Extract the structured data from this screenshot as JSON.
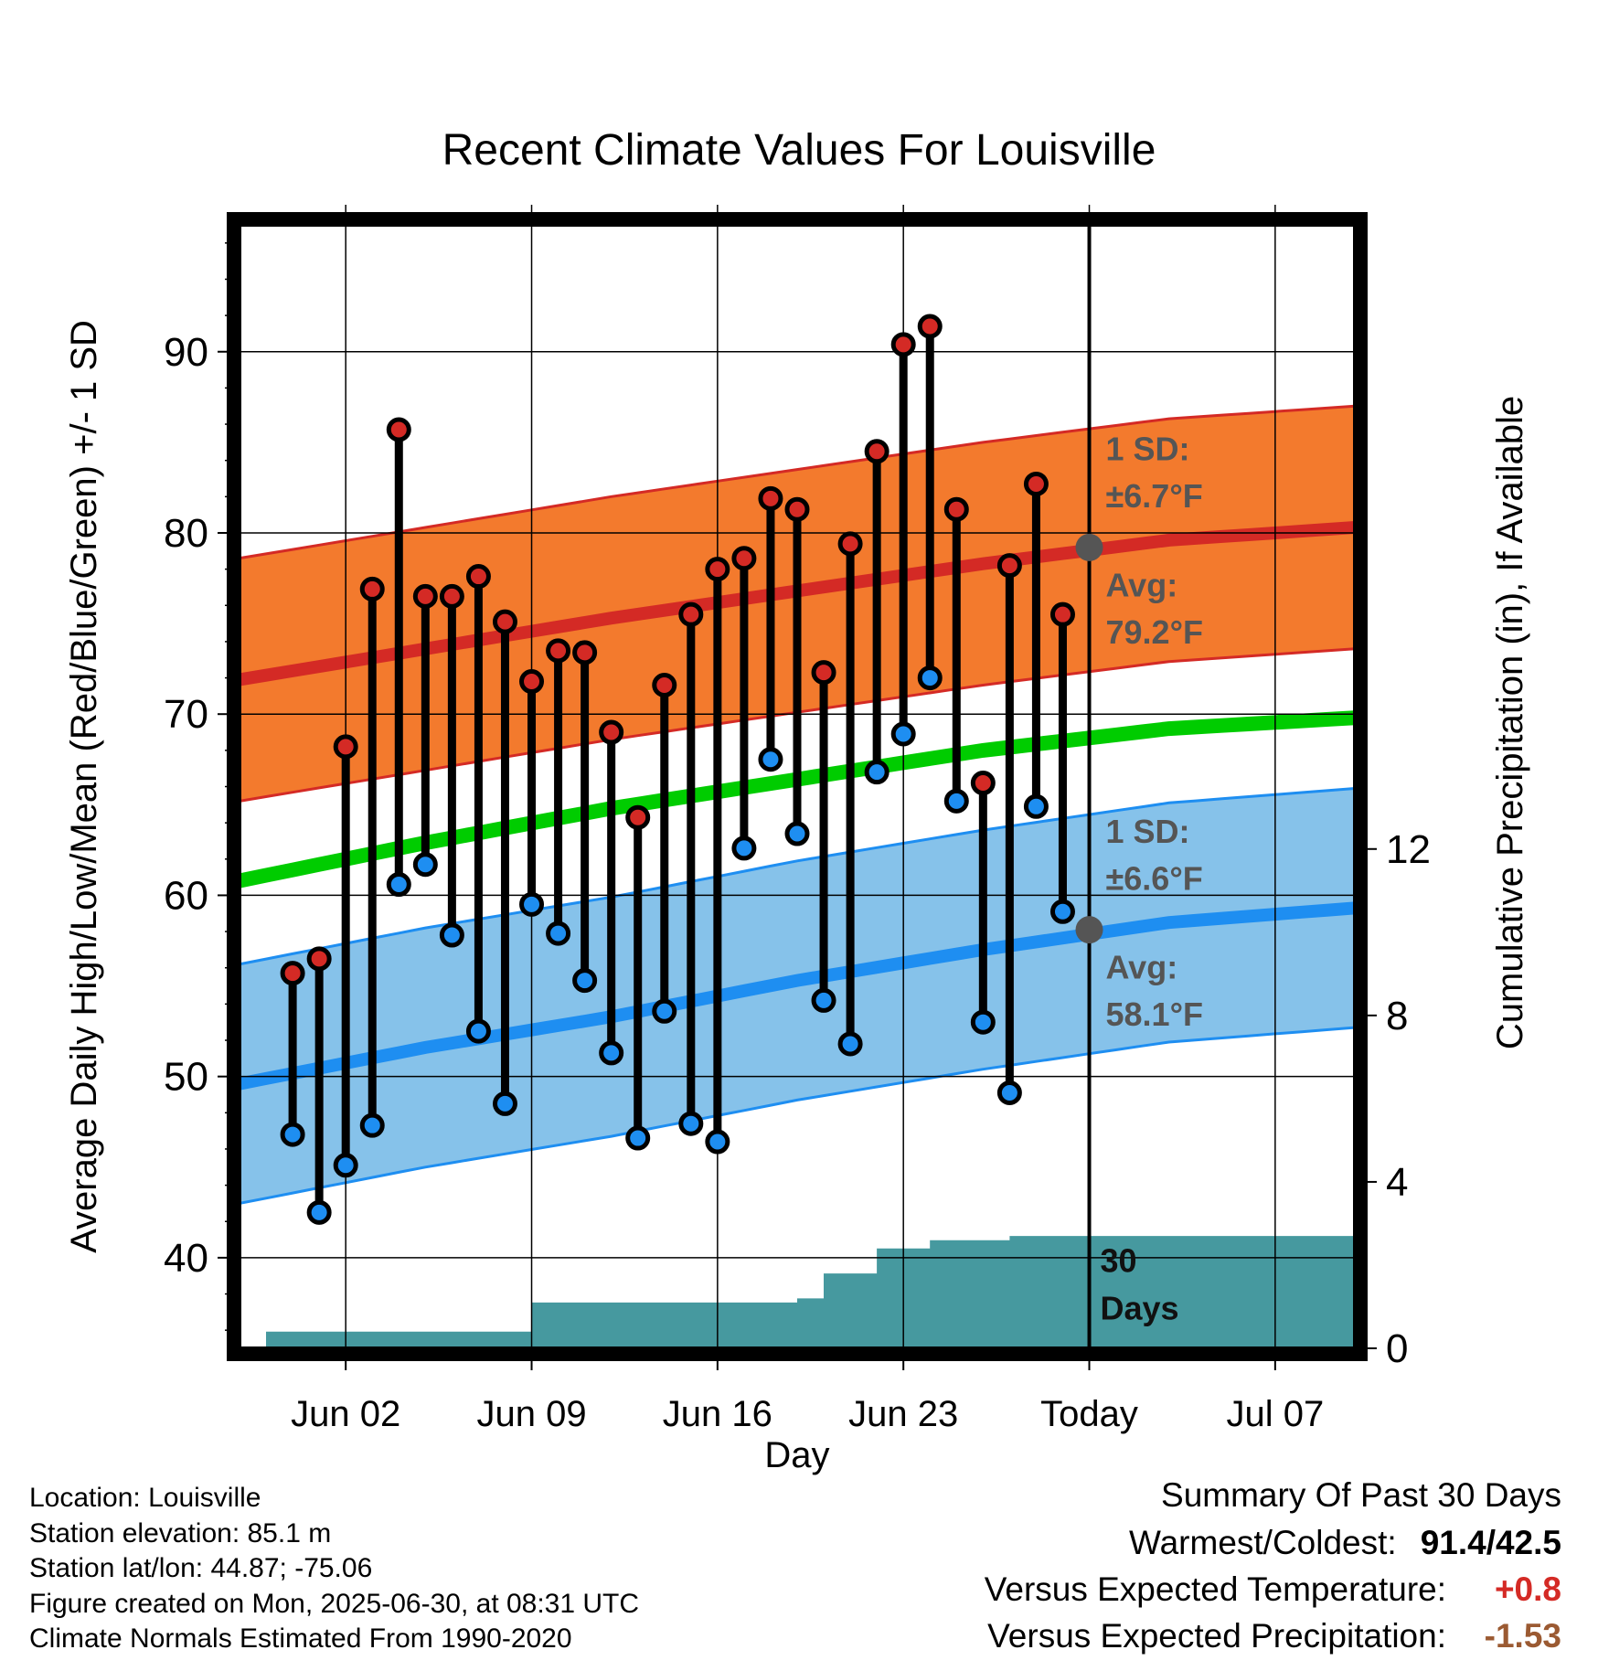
{
  "chart_data": {
    "type": "line",
    "title": "Recent Climate Values For Louisville",
    "xlabel": "Day",
    "ylabel": "Average Daily High/Low/Mean (Red/Blue/Green) +/- 1 SD",
    "y2label": "Cumulative Precipitation (in), If Available",
    "ylim": [
      35,
      97
    ],
    "y2lim": [
      0,
      27
    ],
    "xlim": [
      "2025-05-29",
      "2025-07-10"
    ],
    "yticks": [
      40,
      50,
      60,
      70,
      80,
      90
    ],
    "y2ticks": [
      0,
      4,
      8,
      12
    ],
    "xticks": [
      {
        "date": "2025-06-02",
        "label": "Jun 02"
      },
      {
        "date": "2025-06-09",
        "label": "Jun 09"
      },
      {
        "date": "2025-06-16",
        "label": "Jun 16"
      },
      {
        "date": "2025-06-23",
        "label": "Jun 23"
      },
      {
        "date": "2025-06-30",
        "label": "Today"
      },
      {
        "date": "2025-07-07",
        "label": "Jul 07"
      }
    ],
    "grid": true,
    "colors": {
      "high": "#d42a25",
      "high_band": "#f37a2d",
      "low": "#1e8ef1",
      "low_band": "#86c2ea",
      "mean": "#00cc00",
      "precip": "#46999f",
      "today_marker": "#555555"
    },
    "daily_obs": {
      "dates": [
        "2025-05-31",
        "2025-06-01",
        "2025-06-02",
        "2025-06-03",
        "2025-06-04",
        "2025-06-05",
        "2025-06-06",
        "2025-06-07",
        "2025-06-08",
        "2025-06-09",
        "2025-06-10",
        "2025-06-11",
        "2025-06-12",
        "2025-06-13",
        "2025-06-14",
        "2025-06-15",
        "2025-06-16",
        "2025-06-17",
        "2025-06-18",
        "2025-06-19",
        "2025-06-20",
        "2025-06-21",
        "2025-06-22",
        "2025-06-23",
        "2025-06-24",
        "2025-06-25",
        "2025-06-26",
        "2025-06-27",
        "2025-06-28",
        "2025-06-29"
      ],
      "highs": [
        55.7,
        56.5,
        68.2,
        76.9,
        85.7,
        76.5,
        76.5,
        77.6,
        75.1,
        71.8,
        73.5,
        73.4,
        69.0,
        64.3,
        71.6,
        75.5,
        78.0,
        78.6,
        81.9,
        81.3,
        72.3,
        79.4,
        84.5,
        90.4,
        91.4,
        81.3,
        66.2,
        78.2,
        82.7,
        75.5
      ],
      "lows": [
        46.8,
        42.5,
        45.1,
        47.3,
        60.6,
        61.7,
        57.8,
        52.5,
        48.5,
        59.5,
        57.9,
        55.3,
        51.3,
        46.6,
        53.6,
        47.4,
        46.4,
        62.6,
        67.5,
        63.4,
        54.2,
        51.8,
        66.8,
        68.9,
        72.0,
        65.2,
        53.0,
        49.1,
        64.9,
        59.1
      ]
    },
    "normals": {
      "dates": [
        "2025-05-29",
        "2025-06-05",
        "2025-06-12",
        "2025-06-19",
        "2025-06-26",
        "2025-07-03",
        "2025-07-10"
      ],
      "avg_high": [
        71.9,
        73.6,
        75.3,
        76.8,
        78.3,
        79.6,
        80.3
      ],
      "avg_mean": [
        60.8,
        62.9,
        64.8,
        66.4,
        68.0,
        69.2,
        69.8
      ],
      "avg_low": [
        49.6,
        51.6,
        53.3,
        55.3,
        57.0,
        58.5,
        59.3
      ],
      "high_sd": 6.7,
      "low_sd": 6.6
    },
    "precip": {
      "dates": [
        "2025-05-29",
        "2025-05-30",
        "2025-06-08",
        "2025-06-09",
        "2025-06-18",
        "2025-06-19",
        "2025-06-20",
        "2025-06-21",
        "2025-06-22",
        "2025-06-24",
        "2025-06-27",
        "2025-07-10"
      ],
      "cumulative": [
        0.0,
        0.4,
        0.4,
        1.1,
        1.1,
        1.2,
        1.8,
        1.8,
        2.4,
        2.6,
        2.7,
        2.7
      ]
    },
    "annotations": {
      "high_sd_label": "1 SD:",
      "high_sd_value": "±6.7°F",
      "high_avg_label": "Avg:",
      "high_avg_value": "79.2°F",
      "low_sd_label": "1 SD:",
      "low_sd_value": "±6.6°F",
      "low_avg_label": "Avg:",
      "low_avg_value": "58.1°F",
      "today_high": 79.2,
      "today_low": 58.1,
      "window_line1": "30",
      "window_line2": "Days"
    }
  },
  "meta": {
    "location": "Location: Louisville",
    "elevation": "Station elevation: 85.1 m",
    "latlon": "Station lat/lon: 44.87; -75.06",
    "created": "Figure created on Mon, 2025-06-30, at 08:31 UTC",
    "normals": "Climate Normals Estimated From 1990-2020"
  },
  "summary": {
    "title": "Summary Of Past 30 Days",
    "warmest_label": "Warmest/Coldest:",
    "warmest_value": "91.4/42.5",
    "temp_label": "Versus Expected Temperature:",
    "temp_value": "+0.8",
    "temp_color": "#d42a25",
    "precip_label": "Versus Expected Precipitation:",
    "precip_value": "-1.53",
    "precip_color": "#9b5a32"
  }
}
